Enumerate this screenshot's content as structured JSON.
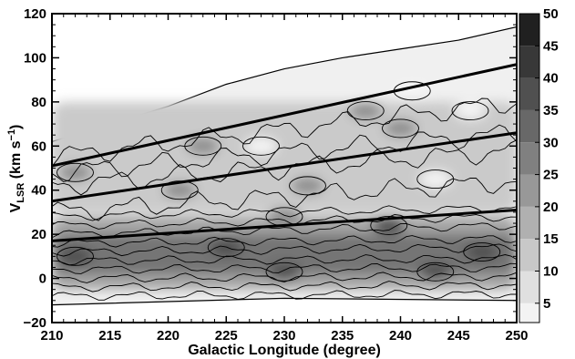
{
  "chart_data": {
    "type": "heatmap",
    "title": "",
    "xlabel": "Galactic Longitude (degree)",
    "ylabel_main": "V",
    "ylabel_sub": "LSR",
    "ylabel_unit": " (km s",
    "ylabel_sup": "−1",
    "ylabel_close": ")",
    "xlim": [
      210,
      250
    ],
    "ylim": [
      -20,
      120
    ],
    "xticks": [
      210,
      215,
      220,
      225,
      230,
      235,
      240,
      245,
      250
    ],
    "xtick_labels": [
      "210",
      "215",
      "220",
      "225",
      "230",
      "235",
      "240",
      "245",
      "250"
    ],
    "yticks": [
      -20,
      0,
      20,
      40,
      60,
      80,
      100,
      120
    ],
    "ytick_labels": [
      "−20",
      "0",
      "20",
      "40",
      "60",
      "80",
      "100",
      "120"
    ],
    "colorbar": {
      "range": [
        2,
        50
      ],
      "ticks": [
        5,
        10,
        15,
        20,
        25,
        30,
        35,
        40,
        45,
        50
      ],
      "tick_labels": [
        "5",
        "10",
        "15",
        "20",
        "25",
        "30",
        "35",
        "40",
        "45",
        "50"
      ],
      "colormap": "grayscale, white (low) to black (high)"
    },
    "contour_levels": [
      2,
      5,
      10,
      15,
      20,
      25,
      30,
      35,
      40,
      45,
      50
    ],
    "emission_envelope": {
      "upper_edge": [
        [
          210,
          62
        ],
        [
          215,
          70
        ],
        [
          220,
          78
        ],
        [
          225,
          88
        ],
        [
          230,
          95
        ],
        [
          235,
          100
        ],
        [
          240,
          104
        ],
        [
          245,
          108
        ],
        [
          250,
          114
        ]
      ],
      "lower_edge": [
        [
          210,
          -12
        ],
        [
          230,
          -9
        ],
        [
          250,
          -10
        ]
      ]
    },
    "arm_boundary_lines": [
      {
        "x": [
          210,
          250
        ],
        "y": [
          51,
          97
        ]
      },
      {
        "x": [
          210,
          250
        ],
        "y": [
          35,
          66
        ]
      },
      {
        "x": [
          210,
          250
        ],
        "y": [
          17,
          31
        ]
      }
    ],
    "features": [
      {
        "region": "broad band",
        "x": [
          210,
          250
        ],
        "y": [
          -5,
          28
        ],
        "level": 20
      },
      {
        "region": "peak band",
        "x": [
          210,
          250
        ],
        "y": [
          2,
          20
        ],
        "level": 30
      },
      {
        "region": "local maxima",
        "points": [
          [
            212,
            10
          ],
          [
            225,
            14
          ],
          [
            239,
            24
          ],
          [
            247,
            12
          ],
          [
            230,
            3
          ],
          [
            243,
            3
          ]
        ],
        "level": 38
      },
      {
        "region": "outer arm zone",
        "x": [
          210,
          250
        ],
        "y": [
          30,
          80
        ],
        "level": 12
      },
      {
        "region": "outer arm clumps",
        "points": [
          [
            212,
            48
          ],
          [
            223,
            60
          ],
          [
            232,
            42
          ],
          [
            237,
            76
          ],
          [
            240,
            68
          ],
          [
            221,
            40
          ],
          [
            230,
            28
          ]
        ],
        "level": 25
      },
      {
        "region": "voids",
        "points": [
          [
            228,
            60
          ],
          [
            243,
            45
          ],
          [
            241,
            85
          ],
          [
            246,
            76
          ]
        ],
        "level": 3
      }
    ]
  }
}
